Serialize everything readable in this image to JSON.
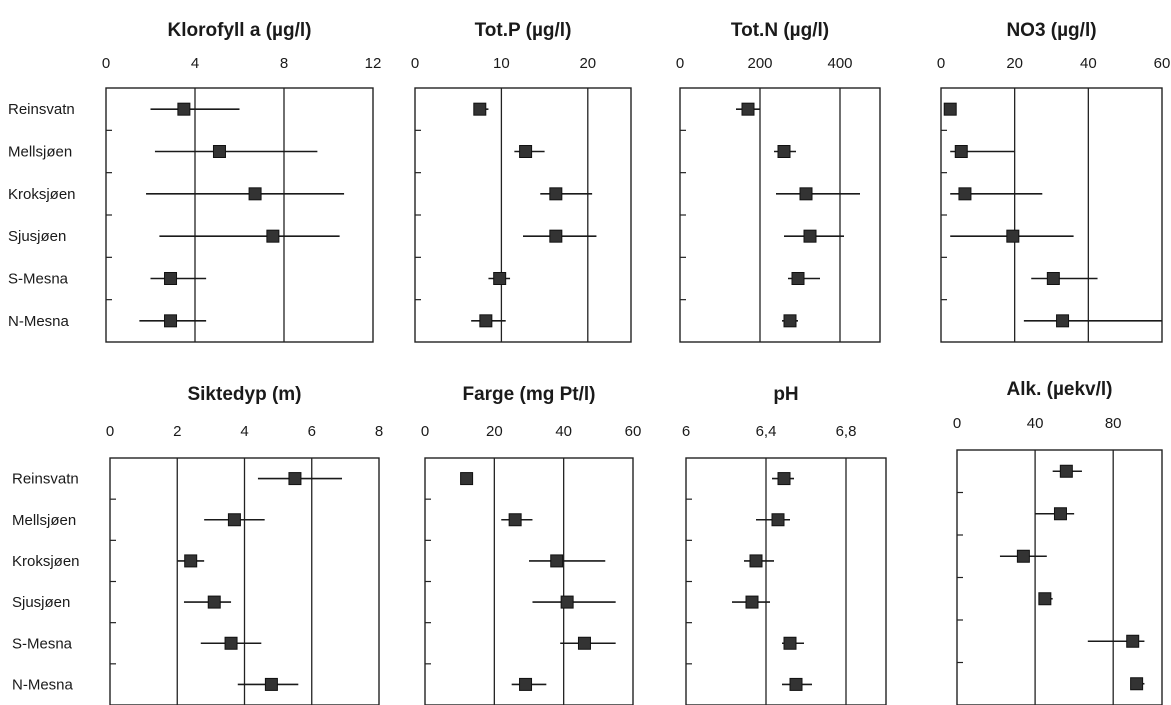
{
  "chart_data": [
    {
      "type": "scatter",
      "title": "Klorofyll a (µg/l)",
      "categories": [
        "Reinsvatn",
        "Mellsjøen",
        "Kroksjøen",
        "Sjusjøen",
        "S-Mesna",
        "N-Mesna"
      ],
      "xlim": [
        0,
        12
      ],
      "xticks": [
        "0",
        "4",
        "8",
        "12"
      ],
      "grid": true,
      "series": [
        {
          "values": [
            3.5,
            5.1,
            6.7,
            7.5,
            2.9,
            2.9
          ],
          "low": [
            2.0,
            2.2,
            1.8,
            2.4,
            2.0,
            1.5
          ],
          "high": [
            6.0,
            9.5,
            10.7,
            10.5,
            4.5,
            4.5
          ]
        }
      ]
    },
    {
      "type": "scatter",
      "title": "Tot.P (µg/l)",
      "categories": [
        "Reinsvatn",
        "Mellsjøen",
        "Kroksjøen",
        "Sjusjøen",
        "S-Mesna",
        "N-Mesna"
      ],
      "xlim": [
        0,
        25
      ],
      "xticks": [
        "0",
        "10",
        "20"
      ],
      "grid": true,
      "series": [
        {
          "values": [
            7.5,
            12.8,
            16.3,
            16.3,
            9.8,
            8.2
          ],
          "low": [
            7.0,
            11.5,
            14.5,
            12.5,
            8.5,
            6.5
          ],
          "high": [
            8.5,
            15.0,
            20.5,
            21.0,
            11.0,
            10.5
          ]
        }
      ]
    },
    {
      "type": "scatter",
      "title": "Tot.N (µg/l)",
      "categories": [
        "Reinsvatn",
        "Mellsjøen",
        "Kroksjøen",
        "Sjusjøen",
        "S-Mesna",
        "N-Mesna"
      ],
      "xlim": [
        0,
        500
      ],
      "xticks": [
        "0",
        "200",
        "400"
      ],
      "grid": true,
      "series": [
        {
          "values": [
            170,
            260,
            315,
            325,
            295,
            275
          ],
          "low": [
            140,
            235,
            240,
            260,
            270,
            255
          ],
          "high": [
            200,
            290,
            450,
            410,
            350,
            295
          ]
        }
      ]
    },
    {
      "type": "scatter",
      "title": "NO3 (µg/l)",
      "categories": [
        "Reinsvatn",
        "Mellsjøen",
        "Kroksjøen",
        "Sjusjøen",
        "S-Mesna",
        "N-Mesna"
      ],
      "xlim": [
        0,
        60
      ],
      "xticks": [
        "0",
        "20",
        "40",
        "60"
      ],
      "grid": true,
      "series": [
        {
          "values": [
            2.5,
            5.5,
            6.5,
            19.5,
            30.5,
            33.0
          ],
          "low": [
            2.5,
            2.5,
            2.5,
            2.5,
            24.5,
            22.5
          ],
          "high": [
            2.5,
            20.0,
            27.5,
            36.0,
            42.5,
            60.0
          ]
        }
      ]
    },
    {
      "type": "scatter",
      "title": "Siktedyp (m)",
      "categories": [
        "Reinsvatn",
        "Mellsjøen",
        "Kroksjøen",
        "Sjusjøen",
        "S-Mesna",
        "N-Mesna"
      ],
      "xlim": [
        0,
        8
      ],
      "xticks": [
        "0",
        "2",
        "4",
        "6",
        "8"
      ],
      "grid": true,
      "series": [
        {
          "values": [
            5.5,
            3.7,
            2.4,
            3.1,
            3.6,
            4.8
          ],
          "low": [
            4.4,
            2.8,
            2.0,
            2.2,
            2.7,
            3.8
          ],
          "high": [
            6.9,
            4.6,
            2.8,
            3.6,
            4.5,
            5.6
          ]
        }
      ]
    },
    {
      "type": "scatter",
      "title": "Farge (mg Pt/l)",
      "categories": [
        "Reinsvatn",
        "Mellsjøen",
        "Kroksjøen",
        "Sjusjøen",
        "S-Mesna",
        "N-Mesna"
      ],
      "xlim": [
        0,
        60
      ],
      "xticks": [
        "0",
        "20",
        "40",
        "60"
      ],
      "grid": true,
      "series": [
        {
          "values": [
            12,
            26,
            38,
            41,
            46,
            29
          ],
          "low": [
            11,
            22,
            30,
            31,
            39,
            25
          ],
          "high": [
            13,
            31,
            52,
            55,
            55,
            35
          ]
        }
      ]
    },
    {
      "type": "scatter",
      "title": "pH",
      "categories": [
        "Reinsvatn",
        "Mellsjøen",
        "Kroksjøen",
        "Sjusjøen",
        "S-Mesna",
        "N-Mesna"
      ],
      "xlim": [
        6,
        7
      ],
      "xticks": [
        "6",
        "6,4",
        "6,8"
      ],
      "grid": true,
      "series": [
        {
          "values": [
            6.49,
            6.46,
            6.35,
            6.33,
            6.52,
            6.55
          ],
          "low": [
            6.43,
            6.35,
            6.29,
            6.23,
            6.48,
            6.48
          ],
          "high": [
            6.54,
            6.52,
            6.44,
            6.42,
            6.59,
            6.63
          ]
        }
      ]
    },
    {
      "type": "scatter",
      "title": "Alk. (µekv/l)",
      "categories": [
        "Reinsvatn",
        "Mellsjøen",
        "Kroksjøen",
        "Sjusjøen",
        "S-Mesna",
        "N-Mesna"
      ],
      "xlim": [
        0,
        105
      ],
      "xticks": [
        "0",
        "40",
        "80"
      ],
      "grid": true,
      "series": [
        {
          "values": [
            56,
            53,
            34,
            45,
            90,
            92
          ],
          "low": [
            49,
            40,
            22,
            42,
            67,
            89
          ],
          "high": [
            64,
            60,
            46,
            49,
            96,
            96
          ]
        }
      ]
    }
  ]
}
